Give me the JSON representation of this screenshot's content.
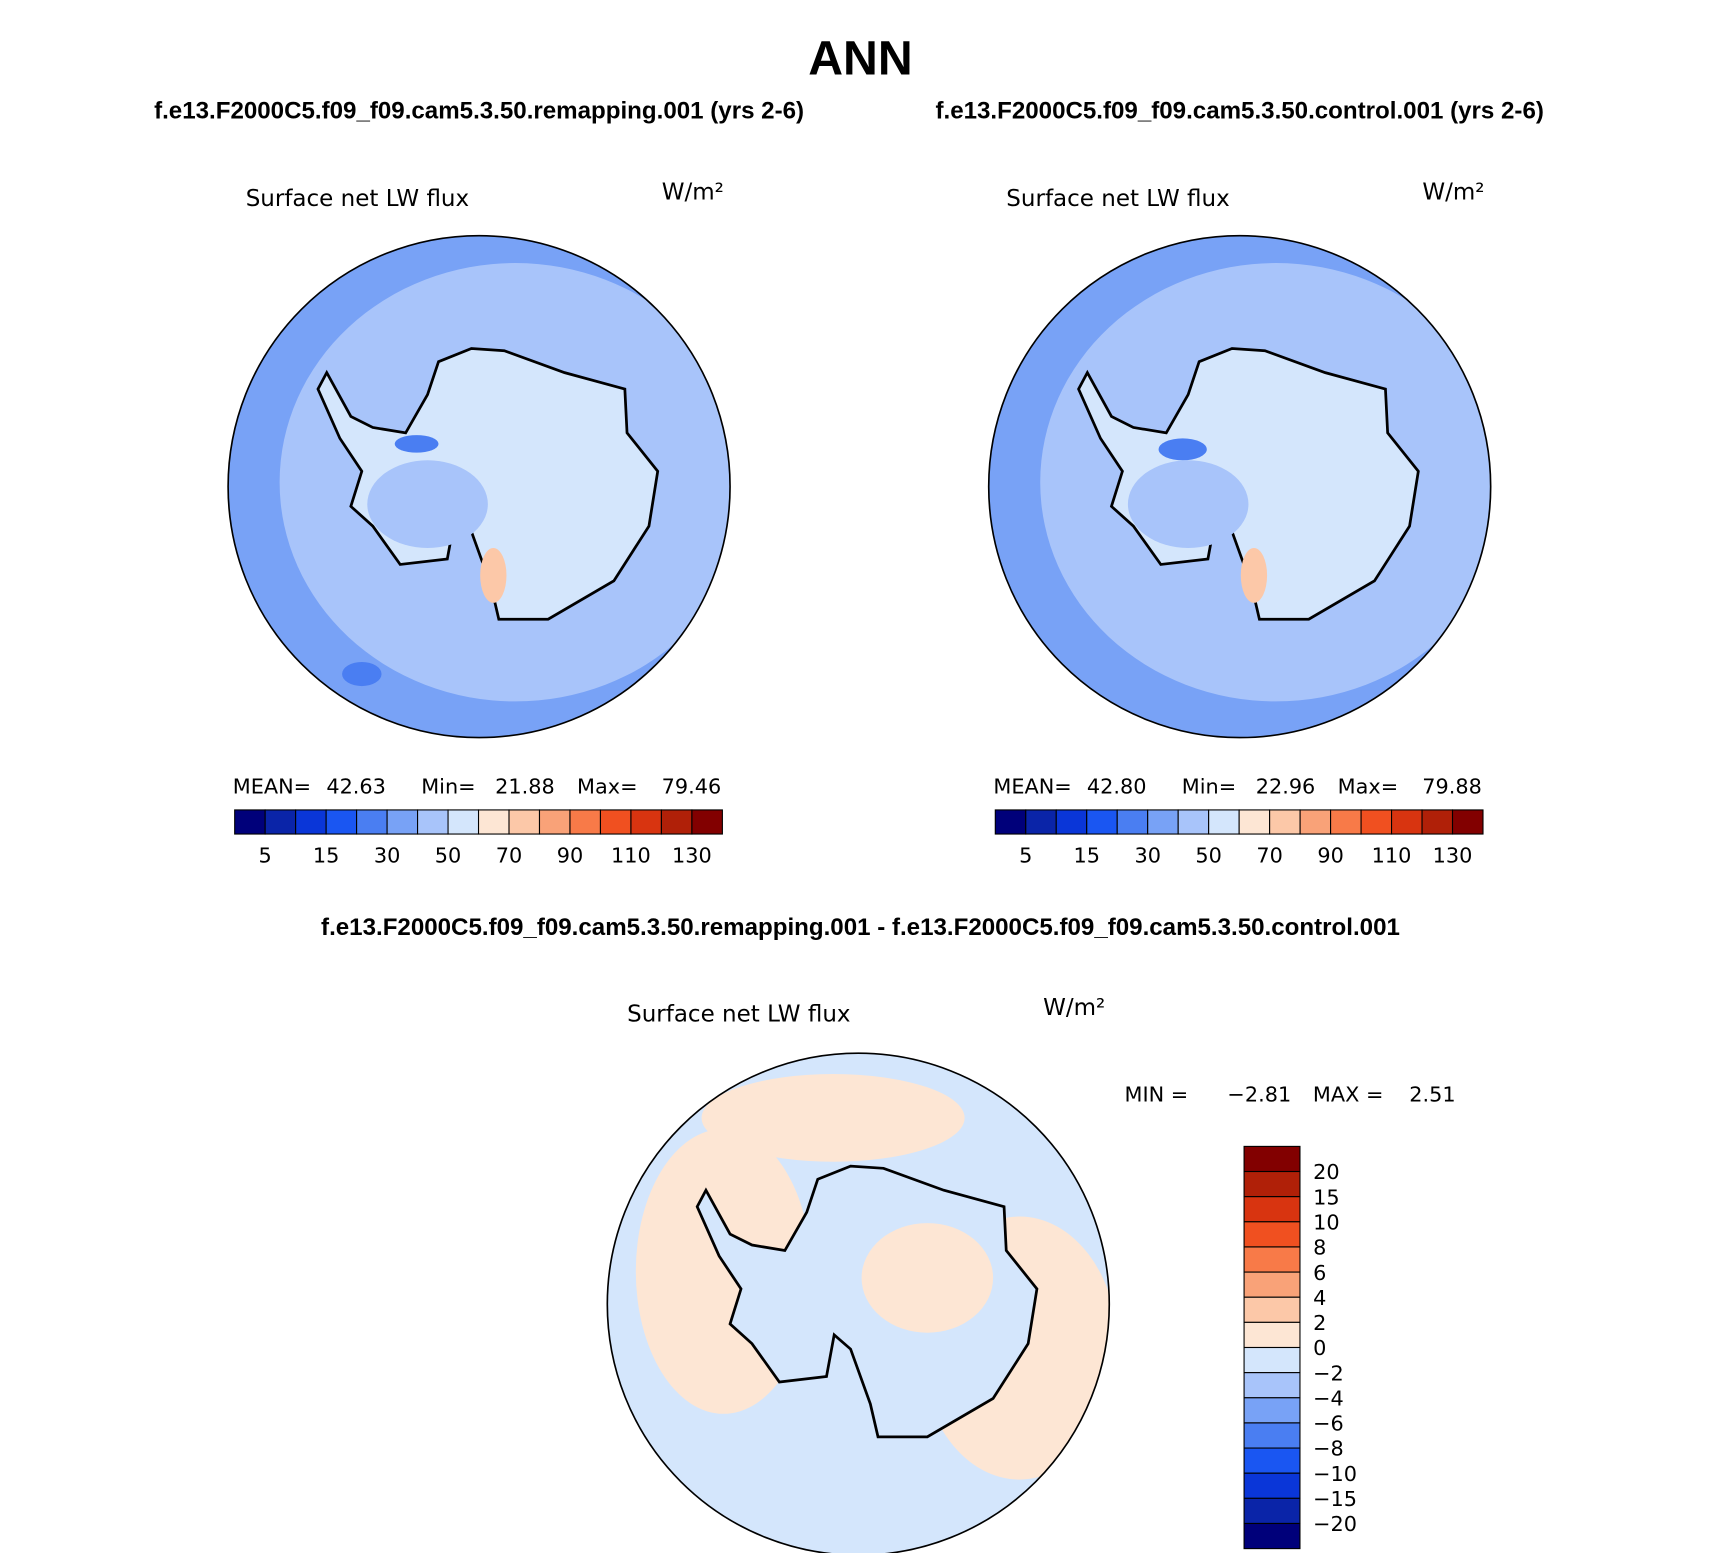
{
  "header": {
    "title": "ANN",
    "left_case": "f.e13.F2000C5.f09_f09.cam5.3.50.remapping.001 (yrs 2-6)",
    "right_case": "f.e13.F2000C5.f09_f09.cam5.3.50.control.001 (yrs 2-6)",
    "diff_case": "f.e13.F2000C5.f09_f09.cam5.3.50.remapping.001 - f.e13.F2000C5.f09_f09.cam5.3.50.control.001"
  },
  "panels": [
    {
      "variable": "Surface net LW flux",
      "units": "W/m²",
      "stats": [
        {
          "label": "MEAN=",
          "value": "42.63"
        },
        {
          "label": "Min=",
          "value": "21.88"
        },
        {
          "label": "Max=",
          "value": "79.46"
        }
      ]
    },
    {
      "variable": "Surface net LW flux",
      "units": "W/m²",
      "stats": [
        {
          "label": "MEAN=",
          "value": "42.80"
        },
        {
          "label": "Min=",
          "value": "22.96"
        },
        {
          "label": "Max=",
          "value": "79.88"
        }
      ]
    },
    {
      "variable": "Surface net LW flux",
      "units": "W/m²",
      "stats": [
        {
          "label": "MIN =",
          "value": "−2.81"
        },
        {
          "label": "MAX =",
          "value": "2.51"
        }
      ]
    }
  ],
  "colorbar": {
    "colors": [
      "#00007a",
      "#0a24a8",
      "#0a36d8",
      "#1a56f2",
      "#4a7ef2",
      "#78a2f6",
      "#a8c4fa",
      "#d4e6fc",
      "#fde6d4",
      "#fcc8a8",
      "#f9a278",
      "#f87a48",
      "#f05020",
      "#d83410",
      "#b02008",
      "#820000"
    ],
    "labels": [
      "5",
      "15",
      "30",
      "50",
      "70",
      "90",
      "110",
      "130"
    ]
  },
  "diff_colorbar": {
    "labels": [
      "20",
      "15",
      "10",
      "8",
      "6",
      "4",
      "2",
      "0",
      "−2",
      "−4",
      "−6",
      "−8",
      "−10",
      "−15",
      "−20"
    ]
  }
}
